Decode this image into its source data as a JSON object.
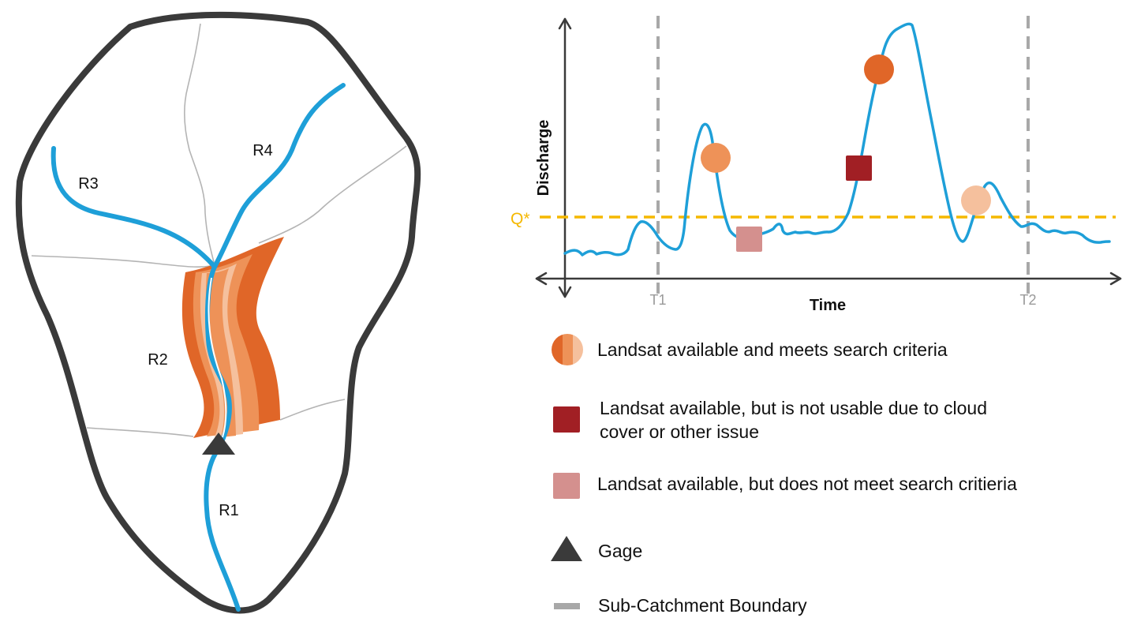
{
  "colors": {
    "outline": "#3a3a3a",
    "river": "#1e9fd8",
    "subcatchment": "#b4b4b4",
    "band_dark": "#e06628",
    "band_mid": "#ee9258",
    "band_light": "#f5c09d",
    "threshold": "#f5b800",
    "marker_orange": "#ee9258",
    "marker_dark_orange": "#e06628",
    "marker_peach": "#f5c09d",
    "marker_cloud": "#a11f24",
    "marker_unmet": "#d4908e",
    "gage": "#3a3a3a",
    "boundary_dash": "#a8a8a8"
  },
  "map": {
    "reach_labels": [
      "R1",
      "R2",
      "R3",
      "R4"
    ]
  },
  "hydrograph": {
    "y_axis_title": "Discharge",
    "x_axis_title": "Time",
    "threshold_label": "Q*",
    "tick_labels": [
      "T1",
      "T2"
    ]
  },
  "legend": {
    "items": [
      {
        "icon": "tri-shade-circle-icon",
        "lines": [
          "Landsat available and meets search criteria"
        ]
      },
      {
        "icon": "dark-red-square-icon",
        "lines": [
          "Landsat available, but is not usable due to cloud",
          "cover or other issue"
        ]
      },
      {
        "icon": "pink-square-icon",
        "lines": [
          "Landsat available, but does not meet search critieria"
        ]
      },
      {
        "icon": "gage-triangle-icon",
        "lines": [
          "Gage"
        ]
      },
      {
        "icon": "gray-dash-icon",
        "lines": [
          "Sub-Catchment Boundary"
        ]
      }
    ]
  }
}
